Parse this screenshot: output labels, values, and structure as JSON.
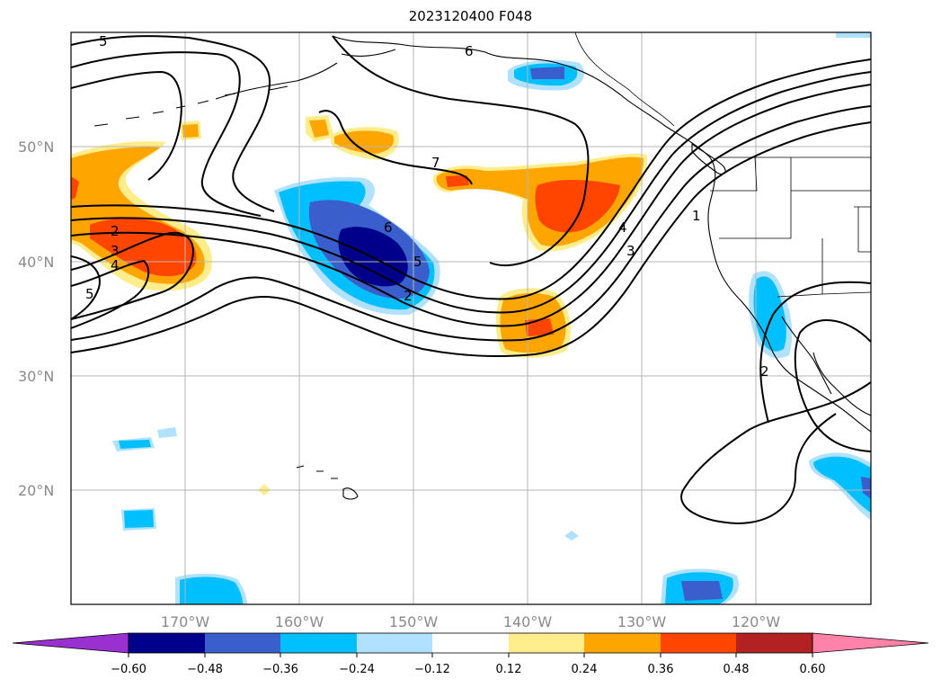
{
  "title": "2023120400 F048",
  "map": {
    "lat_labels": [
      "50°N",
      "40°N",
      "30°N",
      "20°N"
    ],
    "lon_labels": [
      "170°W",
      "160°W",
      "150°W",
      "140°W",
      "130°W",
      "120°W"
    ],
    "contour_labels": [
      "5",
      "6",
      "7",
      "2",
      "3",
      "4",
      "5",
      "6",
      "5",
      "2",
      "4",
      "3",
      "1",
      "2"
    ]
  },
  "colorbar": {
    "ticks": [
      "−0.60",
      "−0.48",
      "−0.36",
      "−0.24",
      "−0.12",
      "0.12",
      "0.24",
      "0.36",
      "0.48",
      "0.60"
    ],
    "colors": [
      "#9b30d0",
      "#00008b",
      "#3a5fcd",
      "#00bfff",
      "#b0e2ff",
      "#ffffff",
      "#ffec8b",
      "#ffa500",
      "#ff4500",
      "#b22222",
      "#ff82ab"
    ]
  }
}
